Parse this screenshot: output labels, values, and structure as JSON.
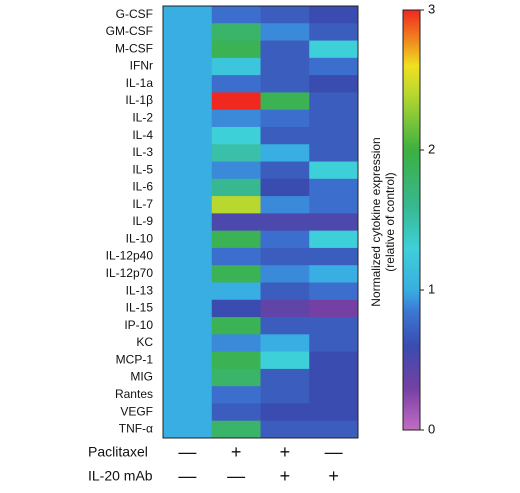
{
  "chart_data": {
    "type": "heatmap",
    "rows": [
      "G-CSF",
      "GM-CSF",
      "M-CSF",
      "IFNr",
      "IL-1a",
      "IL-1β",
      "IL-2",
      "IL-4",
      "IL-3",
      "IL-5",
      "IL-6",
      "IL-7",
      "IL-9",
      "IL-10",
      "IL-12p40",
      "IL-12p70",
      "IL-13",
      "IL-15",
      "IP-10",
      "KC",
      "MCP-1",
      "MIG",
      "Rantes",
      "VEGF",
      "TNF-α"
    ],
    "values": [
      [
        1,
        0.8,
        0.7,
        0.6
      ],
      [
        1,
        1.8,
        0.9,
        0.7
      ],
      [
        1,
        1.9,
        0.7,
        1.3
      ],
      [
        1,
        1.2,
        0.7,
        0.8
      ],
      [
        1,
        0.8,
        0.7,
        0.6
      ],
      [
        1,
        3.0,
        1.9,
        0.7
      ],
      [
        1,
        0.9,
        0.8,
        0.7
      ],
      [
        1,
        1.3,
        0.7,
        0.7
      ],
      [
        1,
        1.5,
        1.0,
        0.7
      ],
      [
        1,
        0.9,
        0.7,
        1.3
      ],
      [
        1,
        1.6,
        0.6,
        0.8
      ],
      [
        1,
        2.4,
        0.9,
        0.8
      ],
      [
        1,
        0.5,
        0.5,
        0.5
      ],
      [
        1,
        1.9,
        0.8,
        1.3
      ],
      [
        1,
        0.8,
        0.7,
        0.7
      ],
      [
        1,
        1.9,
        0.9,
        1.0
      ],
      [
        1,
        1.0,
        0.7,
        0.8
      ],
      [
        1,
        0.6,
        0.4,
        0.3
      ],
      [
        1,
        1.9,
        0.7,
        0.7
      ],
      [
        1,
        0.9,
        1.0,
        0.7
      ],
      [
        1,
        1.9,
        1.3,
        0.6
      ],
      [
        1,
        1.8,
        0.7,
        0.6
      ],
      [
        1,
        0.8,
        0.7,
        0.6
      ],
      [
        1,
        0.7,
        0.6,
        0.6
      ],
      [
        1,
        1.8,
        0.7,
        0.7
      ]
    ],
    "treatments": [
      {
        "name": "Paclitaxel",
        "marks": [
          "—",
          "+",
          "+",
          "—"
        ]
      },
      {
        "name": "IL-20 mAb",
        "marks": [
          "—",
          "—",
          "+",
          "+"
        ]
      }
    ],
    "colorscale": [
      [
        0,
        "#c46cc4"
      ],
      [
        0.3,
        "#7440a4"
      ],
      [
        0.6,
        "#3a4cb0"
      ],
      [
        0.85,
        "#3c78d4"
      ],
      [
        1,
        "#38aee2"
      ],
      [
        1.3,
        "#3ed0d8"
      ],
      [
        1.6,
        "#38b890"
      ],
      [
        2,
        "#3cb040"
      ],
      [
        2.4,
        "#b8d830"
      ],
      [
        2.6,
        "#f0e020"
      ],
      [
        2.8,
        "#f08020"
      ],
      [
        3,
        "#f02820"
      ]
    ],
    "clim": [
      0,
      3
    ],
    "cticks": [
      0,
      1,
      2,
      3
    ],
    "colorbar_label": [
      "Normalized cytokine expression",
      "(relative of control)"
    ]
  }
}
